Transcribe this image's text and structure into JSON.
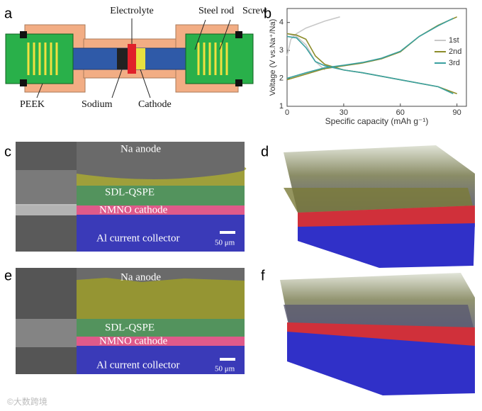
{
  "panels": [
    "a",
    "b",
    "c",
    "d",
    "e",
    "f"
  ],
  "schematic": {
    "electrolyte": "Electrolyte",
    "steel_rod": "Steel rod",
    "screw": "Screw",
    "peek": "PEEK",
    "sodium": "Sodium",
    "cathode": "Cathode"
  },
  "chart_data": {
    "type": "line",
    "xlabel": "Specific capacity (mAh g⁻¹)",
    "ylabel": "Voltage (V vs.Na⁺/Na)",
    "xlim": [
      0,
      95
    ],
    "ylim": [
      1,
      4.5
    ],
    "xticks": [
      0,
      30,
      60,
      90
    ],
    "yticks": [
      1,
      2,
      3,
      4
    ],
    "legend": "right",
    "series": [
      {
        "name": "1st",
        "color": "#c8c8c8",
        "x": [
          0,
          2,
          5,
          10,
          20,
          28,
          null,
          0,
          5,
          10,
          15,
          20
        ],
        "values": [
          2.8,
          3.4,
          3.6,
          3.8,
          4.05,
          4.2,
          null,
          3.6,
          3.5,
          3.2,
          2.6,
          2.3
        ]
      },
      {
        "name": "2nd",
        "color": "#8c8c2a",
        "x": [
          0,
          5,
          10,
          15,
          20,
          30,
          40,
          60,
          80,
          90,
          null,
          0,
          10,
          20,
          30,
          40,
          50,
          60,
          70,
          80,
          90
        ],
        "values": [
          3.6,
          3.55,
          3.4,
          2.8,
          2.5,
          2.3,
          2.2,
          1.95,
          1.7,
          1.45,
          null,
          1.95,
          2.15,
          2.35,
          2.45,
          2.55,
          2.7,
          2.95,
          3.5,
          3.9,
          4.2
        ]
      },
      {
        "name": "3rd",
        "color": "#3aa0a0",
        "x": [
          0,
          5,
          10,
          15,
          20,
          30,
          40,
          60,
          80,
          88,
          null,
          0,
          10,
          20,
          30,
          40,
          50,
          60,
          70,
          80,
          88
        ],
        "values": [
          3.5,
          3.45,
          3.1,
          2.6,
          2.45,
          2.3,
          2.2,
          1.95,
          1.7,
          1.45,
          null,
          2.0,
          2.2,
          2.38,
          2.47,
          2.57,
          2.72,
          2.97,
          3.5,
          3.88,
          4.15
        ]
      }
    ]
  },
  "image_c": {
    "na_anode": "Na anode",
    "spe": "SDL-QSPE",
    "cathode": "NMNO cathode",
    "collector": "Al current collector",
    "scale": "50 μm"
  },
  "image_e": {
    "na_anode": "Na anode",
    "spe": "SDL-QSPE",
    "cathode": "NMNO cathode",
    "collector": "Al current collector",
    "scale": "50 μm"
  },
  "watermark": "©大数跨境"
}
